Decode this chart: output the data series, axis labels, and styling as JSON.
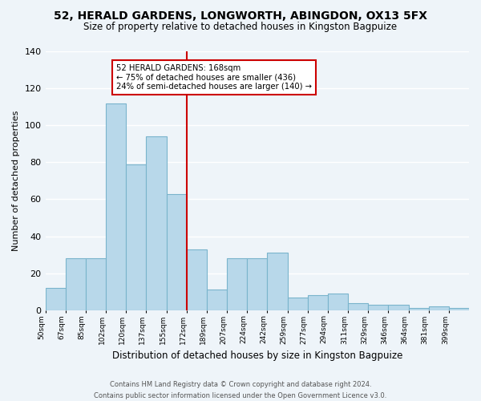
{
  "title": "52, HERALD GARDENS, LONGWORTH, ABINGDON, OX13 5FX",
  "subtitle": "Size of property relative to detached houses in Kingston Bagpuize",
  "xlabel": "Distribution of detached houses by size in Kingston Bagpuize",
  "ylabel": "Number of detached properties",
  "bin_labels": [
    "50sqm",
    "67sqm",
    "85sqm",
    "102sqm",
    "120sqm",
    "137sqm",
    "155sqm",
    "172sqm",
    "189sqm",
    "207sqm",
    "224sqm",
    "242sqm",
    "259sqm",
    "277sqm",
    "294sqm",
    "311sqm",
    "329sqm",
    "346sqm",
    "364sqm",
    "381sqm",
    "399sqm"
  ],
  "bar_heights": [
    12,
    28,
    28,
    112,
    79,
    94,
    63,
    33,
    11,
    28,
    28,
    31,
    7,
    8,
    9,
    4,
    3,
    3,
    1,
    2,
    1
  ],
  "bar_color": "#b8d8ea",
  "bar_edge_color": "#7ab4cc",
  "vline_color": "#cc0000",
  "annotation_line1": "52 HERALD GARDENS: 168sqm",
  "annotation_line2": "← 75% of detached houses are smaller (436)",
  "annotation_line3": "24% of semi-detached houses are larger (140) →",
  "annotation_box_color": "#ffffff",
  "annotation_box_edge": "#cc0000",
  "ylim": [
    0,
    140
  ],
  "yticks": [
    0,
    20,
    40,
    60,
    80,
    100,
    120,
    140
  ],
  "footer_line1": "Contains HM Land Registry data © Crown copyright and database right 2024.",
  "footer_line2": "Contains public sector information licensed under the Open Government Licence v3.0.",
  "background_color": "#eef4f9"
}
